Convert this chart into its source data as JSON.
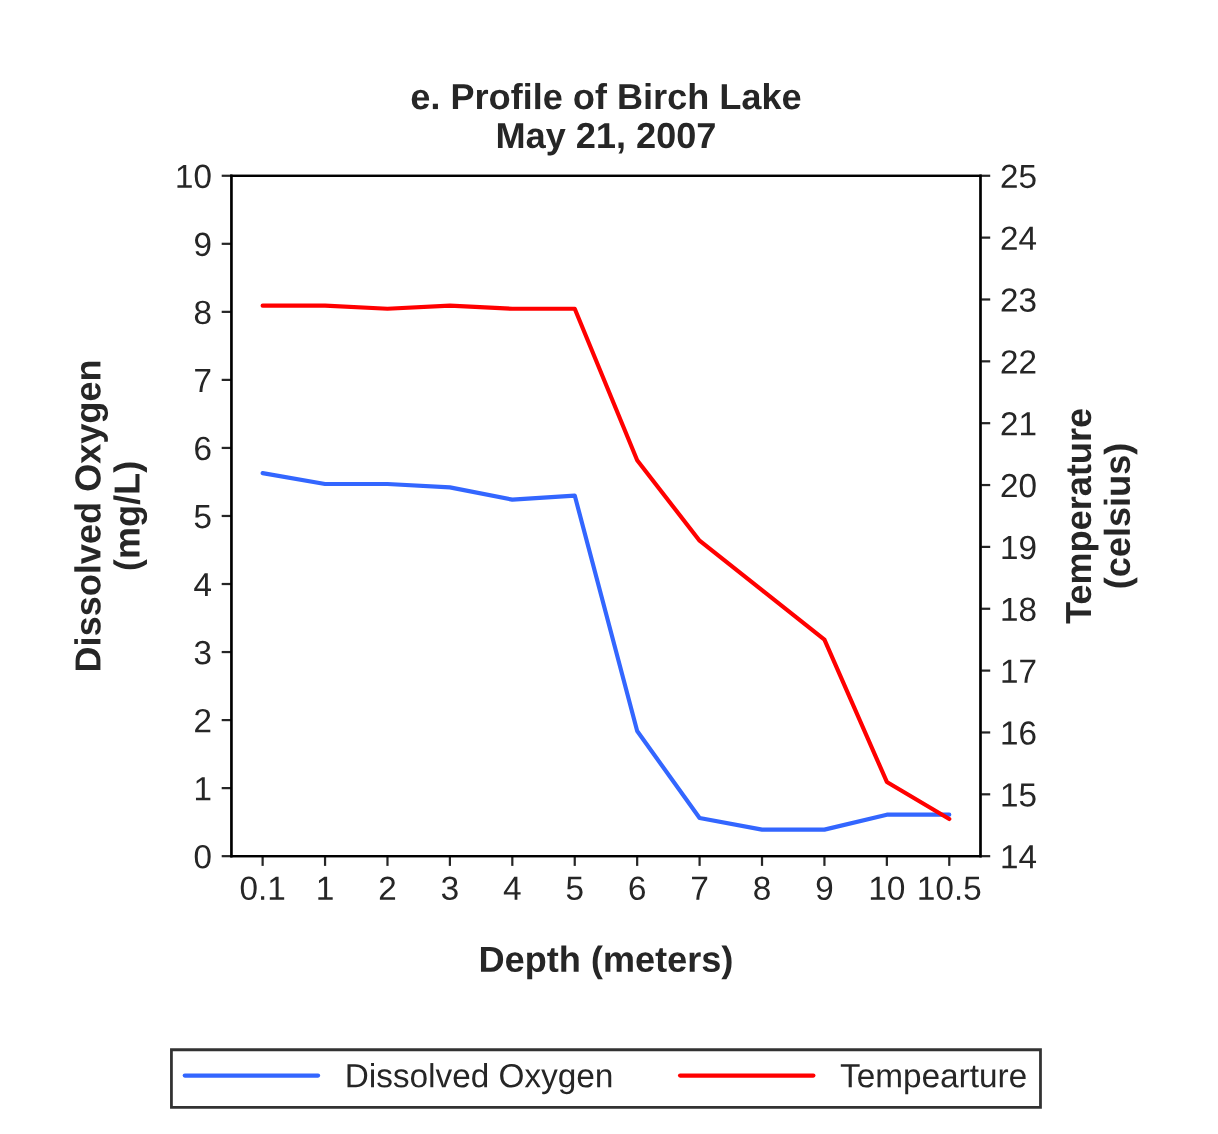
{
  "chart_data": {
    "type": "line",
    "title": "e. Profile of Birch Lake\nMay 21, 2007",
    "xlabel": "Depth (meters)",
    "ylabel": "Dissolved Oxygen\n(mg/L)",
    "y2label": "Temperature\n(celsius)",
    "categories": [
      "0.1",
      "1",
      "2",
      "3",
      "4",
      "5",
      "6",
      "7",
      "8",
      "9",
      "10",
      "10.5"
    ],
    "series": [
      {
        "name": "Dissolved Oxygen",
        "color": "#3366ff",
        "values": [
          5.63,
          5.47,
          5.47,
          5.42,
          5.24,
          5.3,
          1.84,
          0.56,
          0.39,
          0.39,
          0.61,
          0.61
        ]
      },
      {
        "name": "Tempearture",
        "color": "#ff0000",
        "axis": "y2",
        "values": [
          22.9,
          22.9,
          22.85,
          22.9,
          22.85,
          22.85,
          20.4,
          19.1,
          18.3,
          17.5,
          15.2,
          14.6
        ]
      }
    ],
    "ylim": [
      0,
      10
    ],
    "yticks": [
      0,
      1,
      2,
      3,
      4,
      5,
      6,
      7,
      8,
      9,
      10
    ],
    "y2lim": [
      14,
      25
    ],
    "y2ticks": [
      14,
      15,
      16,
      17,
      18,
      19,
      20,
      21,
      22,
      23,
      24,
      25
    ],
    "grid": false,
    "legend": "bottom",
    "marker": "none",
    "line_style": "solid"
  }
}
